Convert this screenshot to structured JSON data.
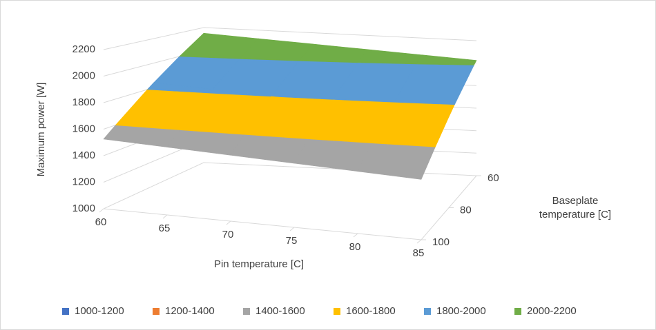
{
  "chart_data": {
    "type": "surface",
    "x_label": "Pin temperature [C]",
    "y_label": [
      "Baseplate",
      "temperature [C]"
    ],
    "z_label": "Maximum power [W]",
    "x_categories": [
      60,
      65,
      70,
      75,
      80,
      85
    ],
    "y_categories": [
      60,
      80,
      100
    ],
    "values": [
      [
        2150,
        2125,
        2100,
        2075,
        2050,
        2025
      ],
      [
        1840,
        1820,
        1800,
        1780,
        1760,
        1740
      ],
      [
        1525,
        1511,
        1497,
        1483,
        1469,
        1455
      ]
    ],
    "zlim": [
      1000,
      2200
    ],
    "zticks": [
      1000,
      1200,
      1400,
      1600,
      1800,
      2000,
      2200
    ],
    "grid": true,
    "legend": "bottom",
    "series": [
      {
        "name": "1000-1200",
        "color": "#4472c4",
        "range": [
          1000,
          1200
        ]
      },
      {
        "name": "1200-1400",
        "color": "#ed7d31",
        "range": [
          1200,
          1400
        ]
      },
      {
        "name": "1400-1600",
        "color": "#a5a5a5",
        "range": [
          1400,
          1600
        ]
      },
      {
        "name": "1600-1800",
        "color": "#ffc000",
        "range": [
          1600,
          1800
        ]
      },
      {
        "name": "1800-2000",
        "color": "#5b9bd5",
        "range": [
          1800,
          2000
        ]
      },
      {
        "name": "2000-2200",
        "color": "#70ad47",
        "range": [
          2000,
          2200
        ]
      }
    ]
  }
}
